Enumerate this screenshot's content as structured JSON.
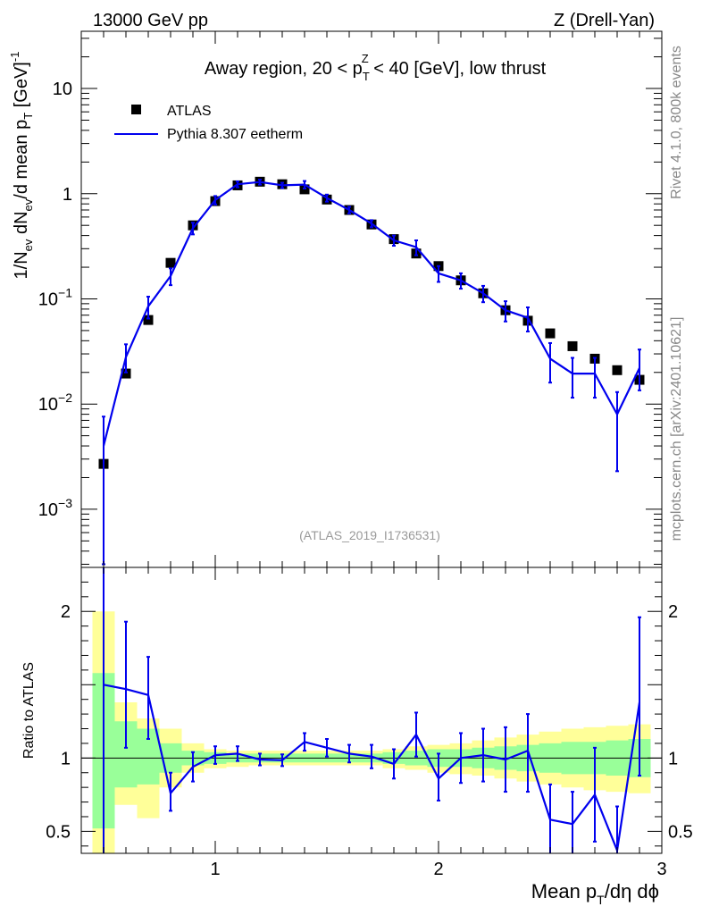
{
  "header": {
    "left": "13000 GeV pp",
    "right": "Z (Drell-Yan)"
  },
  "side_labels": {
    "rivet": "Rivet 4.1.0,  800k events",
    "mcplots": "mcplots.cern.ch [arXiv:2401.10621]"
  },
  "colors": {
    "mc_line": "#0000ee",
    "data_marker": "#000000",
    "band_1sigma": "#99ff99",
    "band_2sigma": "#ffff99"
  },
  "chart_data": [
    {
      "type": "scatter",
      "panel": "main",
      "title": "Away region, 20 < p_T^Z < 40 [GeV], low thrust",
      "title_parts": {
        "pre": "Away region, 20 < p",
        "sub": "T",
        "sup": "Z",
        "post": " < 40 [GeV], low thrust"
      },
      "ylabel": "1/N_ev dN_ev/d mean p_T [GeV]^-1",
      "ylabel_parts": [
        "1/N",
        "ev",
        " dN",
        "ev",
        "/d mean p",
        "T",
        " [GeV]",
        "-1"
      ],
      "yscale": "log",
      "ylim": [
        0.00028,
        35
      ],
      "xlim": [
        0.4,
        3.0
      ],
      "ytick_labels": [
        {
          "value": 10,
          "label": "10"
        },
        {
          "value": 1,
          "label": "1"
        },
        {
          "value": 0.1,
          "base": "10",
          "exp": "−1"
        },
        {
          "value": 0.01,
          "base": "10",
          "exp": "−2"
        },
        {
          "value": 0.001,
          "base": "10",
          "exp": "−3"
        }
      ],
      "analysis_id": "(ATLAS_2019_I1736531)",
      "legend": [
        {
          "name": "ATLAS",
          "style": "marker"
        },
        {
          "name": "Pythia 8.307 eetherm",
          "style": "line"
        }
      ],
      "x": [
        0.5,
        0.6,
        0.7,
        0.8,
        0.9,
        1.0,
        1.1,
        1.2,
        1.3,
        1.4,
        1.5,
        1.6,
        1.7,
        1.8,
        1.9,
        2.0,
        2.1,
        2.2,
        2.3,
        2.4,
        2.5,
        2.6,
        2.7,
        2.8,
        2.9
      ],
      "series": [
        {
          "name": "ATLAS",
          "values": [
            0.0027,
            0.0195,
            0.063,
            0.22,
            0.5,
            0.85,
            1.2,
            1.3,
            1.23,
            1.1,
            0.88,
            0.7,
            0.51,
            0.37,
            0.27,
            0.205,
            0.15,
            0.113,
            0.078,
            0.062,
            0.047,
            0.0355,
            0.027,
            0.021,
            0.017
          ]
        },
        {
          "name": "Pythia 8.307 eetherm",
          "values": [
            0.004,
            0.028,
            0.085,
            0.165,
            0.47,
            0.87,
            1.23,
            1.29,
            1.2,
            1.22,
            0.91,
            0.7,
            0.52,
            0.36,
            0.31,
            0.175,
            0.15,
            0.113,
            0.078,
            0.066,
            0.027,
            0.0195,
            0.0195,
            0.008,
            0.022
          ],
          "err_low": [
            0.0037,
            0.008,
            0.02,
            0.03,
            0.06,
            0.08,
            0.08,
            0.07,
            0.07,
            0.1,
            0.07,
            0.05,
            0.04,
            0.04,
            0.05,
            0.03,
            0.025,
            0.02,
            0.017,
            0.017,
            0.011,
            0.008,
            0.008,
            0.0057,
            0.0085
          ],
          "err_high": [
            0.0036,
            0.009,
            0.02,
            0.03,
            0.06,
            0.08,
            0.08,
            0.07,
            0.07,
            0.1,
            0.07,
            0.05,
            0.04,
            0.04,
            0.05,
            0.03,
            0.025,
            0.02,
            0.017,
            0.017,
            0.011,
            0.008,
            0.008,
            0.005,
            0.011
          ]
        }
      ]
    },
    {
      "type": "line",
      "panel": "ratio",
      "ylabel": "Ratio to ATLAS",
      "xlabel": "Mean p_T/dη dϕ",
      "xlabel_parts": {
        "pre": "Mean p",
        "sub": "T",
        "post": "/dη dϕ"
      },
      "ylim": [
        0.35,
        2.3
      ],
      "xlim": [
        0.4,
        3.0
      ],
      "xticks": [
        {
          "value": 1,
          "label": "1"
        },
        {
          "value": 2,
          "label": "2"
        },
        {
          "value": 3,
          "label": "3"
        }
      ],
      "yticks": [
        {
          "value": 2,
          "label": "2"
        },
        {
          "value": 1,
          "label": "1"
        },
        {
          "value": 0.5,
          "label": "0.5"
        }
      ],
      "x": [
        0.5,
        0.6,
        0.7,
        0.8,
        0.9,
        1.0,
        1.1,
        1.2,
        1.3,
        1.4,
        1.5,
        1.6,
        1.7,
        1.8,
        1.9,
        2.0,
        2.1,
        2.2,
        2.3,
        2.4,
        2.5,
        2.6,
        2.7,
        2.8,
        2.9
      ],
      "ratio": [
        1.5,
        1.47,
        1.43,
        0.76,
        0.94,
        1.02,
        1.03,
        0.99,
        0.985,
        1.11,
        1.07,
        1.03,
        1.01,
        0.96,
        1.16,
        0.86,
        1.0,
        1.02,
        0.99,
        1.05,
        0.58,
        0.55,
        0.75,
        0.37,
        1.38
      ],
      "ratio_err_low": [
        1.4,
        0.4,
        0.3,
        0.12,
        0.1,
        0.06,
        0.05,
        0.04,
        0.04,
        0.06,
        0.06,
        0.06,
        0.08,
        0.1,
        0.15,
        0.15,
        0.17,
        0.18,
        0.22,
        0.28,
        0.28,
        0.25,
        0.32,
        0.3,
        0.5
      ],
      "ratio_err_high": [
        1.4,
        0.46,
        0.26,
        0.14,
        0.1,
        0.06,
        0.05,
        0.04,
        0.04,
        0.06,
        0.06,
        0.06,
        0.08,
        0.1,
        0.15,
        0.17,
        0.17,
        0.18,
        0.22,
        0.25,
        0.24,
        0.22,
        0.32,
        0.3,
        0.58
      ],
      "band_1sigma_low": [
        0.52,
        0.8,
        0.82,
        0.9,
        0.95,
        0.96,
        0.97,
        0.97,
        0.97,
        0.97,
        0.97,
        0.97,
        0.97,
        0.96,
        0.95,
        0.94,
        0.94,
        0.93,
        0.92,
        0.91,
        0.9,
        0.89,
        0.89,
        0.88,
        0.87
      ],
      "band_1sigma_high": [
        1.58,
        1.25,
        1.2,
        1.1,
        1.05,
        1.04,
        1.03,
        1.03,
        1.03,
        1.03,
        1.03,
        1.03,
        1.03,
        1.04,
        1.05,
        1.06,
        1.06,
        1.07,
        1.08,
        1.09,
        1.1,
        1.11,
        1.11,
        1.12,
        1.13
      ],
      "band_2sigma_low": [
        0.3,
        0.68,
        0.59,
        0.8,
        0.9,
        0.93,
        0.94,
        0.95,
        0.95,
        0.95,
        0.95,
        0.95,
        0.95,
        0.93,
        0.92,
        0.9,
        0.89,
        0.88,
        0.86,
        0.84,
        0.82,
        0.8,
        0.78,
        0.77,
        0.76
      ],
      "band_2sigma_high": [
        2.0,
        1.38,
        1.27,
        1.2,
        1.1,
        1.06,
        1.05,
        1.05,
        1.05,
        1.05,
        1.05,
        1.05,
        1.05,
        1.06,
        1.08,
        1.09,
        1.1,
        1.12,
        1.14,
        1.16,
        1.18,
        1.2,
        1.21,
        1.22,
        1.23
      ]
    }
  ]
}
